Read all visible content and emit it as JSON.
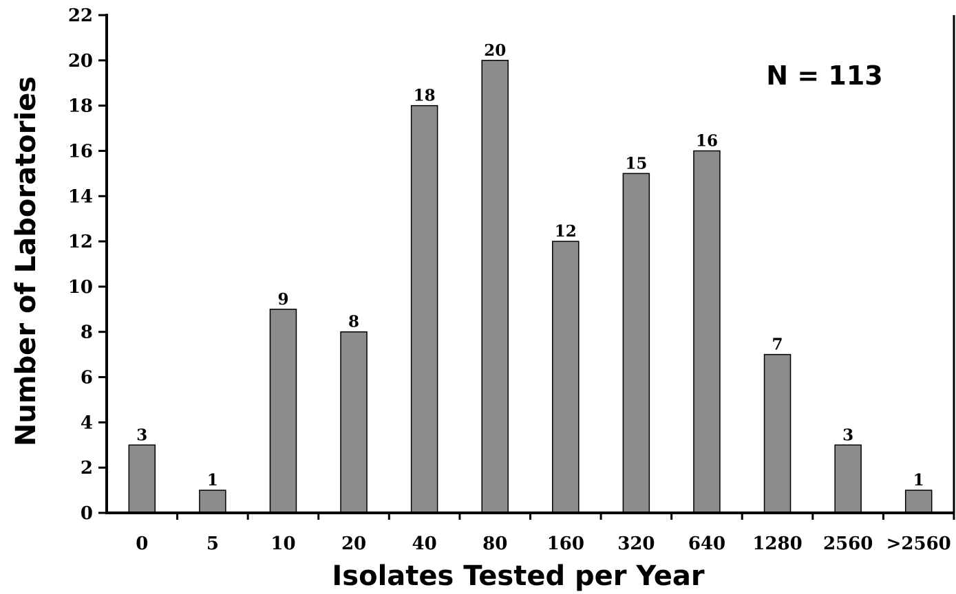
{
  "chart_data": {
    "type": "bar",
    "categories": [
      "0",
      "5",
      "10",
      "20",
      "40",
      "80",
      "160",
      "320",
      "640",
      "1280",
      "2560",
      ">2560"
    ],
    "values": [
      3,
      1,
      9,
      8,
      18,
      20,
      12,
      15,
      16,
      7,
      3,
      1
    ],
    "data_labels": [
      "3",
      "1",
      "9",
      "8",
      "18",
      "20",
      "12",
      "15",
      "16",
      "7",
      "3",
      "1"
    ],
    "xlabel": "Isolates Tested per Year",
    "ylabel": "Number of Laboratories",
    "ylim": [
      0,
      22
    ],
    "yticks": [
      "0",
      "2",
      "4",
      "6",
      "8",
      "10",
      "12",
      "14",
      "16",
      "18",
      "20",
      "22"
    ],
    "annotation": "N = 113",
    "grid": false,
    "legend": "none",
    "bar_color": "#8c8c8c",
    "bar_edge_color": "#000000"
  }
}
